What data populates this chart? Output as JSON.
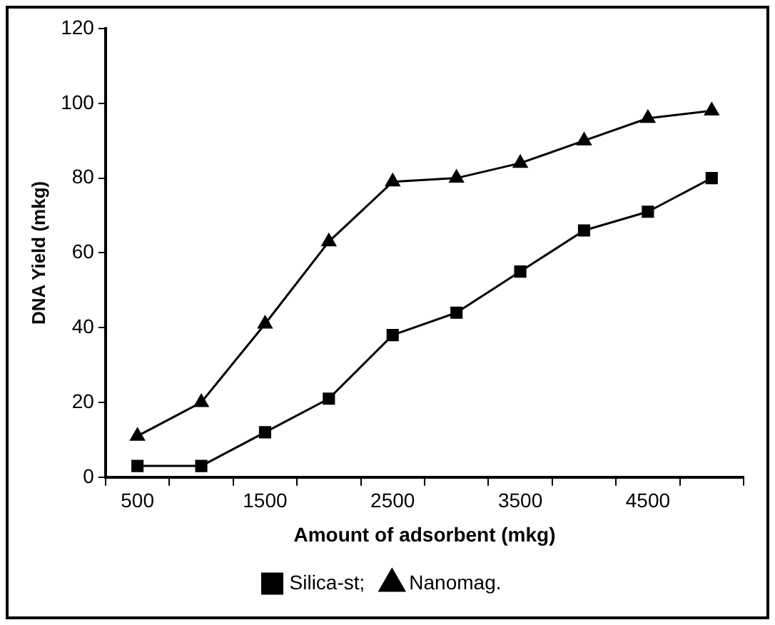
{
  "chart_data": {
    "type": "line",
    "xlabel": "Amount of adsorbent (mkg)",
    "ylabel": "DNA Yield (mkg)",
    "categories": [
      "500",
      null,
      "1500",
      null,
      "2500",
      null,
      "3500",
      null,
      "4500",
      null
    ],
    "series": [
      {
        "name": "Silica-st;",
        "color": "#000000",
        "marker": "square",
        "values": [
          3,
          3,
          12,
          21,
          38,
          44,
          55,
          66,
          71,
          80
        ]
      },
      {
        "name": "Nanomag.",
        "color": "#000000",
        "marker": "triangle",
        "values": [
          11,
          20,
          41,
          63,
          79,
          80,
          84,
          90,
          96,
          98
        ]
      }
    ],
    "ylim": [
      0,
      120
    ],
    "yticks": [
      0,
      20,
      40,
      60,
      80,
      100,
      120
    ],
    "grid": false,
    "legend": "bottom",
    "line_style": "solid"
  }
}
